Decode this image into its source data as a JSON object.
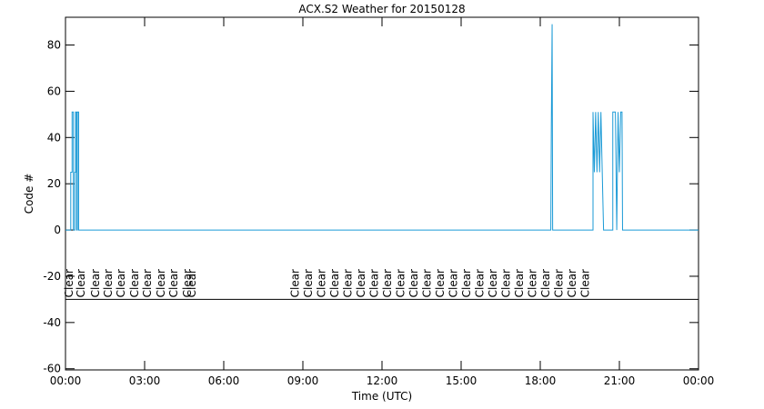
{
  "chart_data": {
    "type": "line",
    "title": "ACX.S2 Weather for 20150128",
    "xlabel": "Time (UTC)",
    "ylabel": "Code #",
    "xlim": [
      0,
      24
    ],
    "xticks": [
      {
        "value": 0,
        "label": "00:00"
      },
      {
        "value": 3,
        "label": "03:00"
      },
      {
        "value": 6,
        "label": "06:00"
      },
      {
        "value": 9,
        "label": "09:00"
      },
      {
        "value": 12,
        "label": "12:00"
      },
      {
        "value": 15,
        "label": "15:00"
      },
      {
        "value": 18,
        "label": "18:00"
      },
      {
        "value": 21,
        "label": "21:00"
      },
      {
        "value": 24,
        "label": "00:00"
      }
    ],
    "ylim": [
      -60.5,
      92
    ],
    "yticks": [
      -60,
      -40,
      -20,
      0,
      20,
      40,
      60,
      80
    ],
    "series": [
      {
        "color": "#1a9ad6",
        "x": [
          0,
          0.2,
          0.2,
          0.25,
          0.25,
          0.3,
          0.3,
          0.35,
          0.35,
          0.38,
          0.38,
          0.42,
          0.42,
          0.45,
          0.45,
          0.5,
          0.5,
          18.4,
          18.42,
          18.45,
          18.47,
          20.0,
          20.0,
          20.05,
          20.1,
          20.15,
          20.2,
          20.25,
          20.3,
          20.35,
          20.4,
          20.75,
          20.75,
          20.85,
          20.9,
          20.95,
          21.0,
          21.05,
          21.1,
          21.12,
          24
        ],
        "values": [
          0,
          0,
          25,
          25,
          51,
          51,
          0,
          0,
          25,
          25,
          51,
          51,
          0,
          0,
          51,
          51,
          0,
          0,
          45,
          89,
          0,
          0,
          51,
          25,
          51,
          25,
          51,
          25,
          51,
          25,
          0,
          0,
          51,
          51,
          0,
          51,
          25,
          51,
          51,
          0,
          0
        ]
      }
    ],
    "hline": {
      "value": -30,
      "color": "#000000"
    },
    "annotations": [
      {
        "label": "Clear",
        "x": 0.14
      },
      {
        "label": "Clear",
        "x": 0.59
      },
      {
        "label": "Clear",
        "x": 1.14
      },
      {
        "label": "Clear",
        "x": 1.62
      },
      {
        "label": "Clear",
        "x": 2.1
      },
      {
        "label": "Clear",
        "x": 2.62
      },
      {
        "label": "Clear",
        "x": 3.1
      },
      {
        "label": "Clear",
        "x": 3.62
      },
      {
        "label": "Clear",
        "x": 4.1
      },
      {
        "label": "Clear",
        "x": 4.62
      },
      {
        "label": "Clear",
        "x": 4.79
      },
      {
        "label": "Clear",
        "x": 8.7
      },
      {
        "label": "Clear",
        "x": 9.2
      },
      {
        "label": "Clear",
        "x": 9.7
      },
      {
        "label": "Clear",
        "x": 10.2
      },
      {
        "label": "Clear",
        "x": 10.7
      },
      {
        "label": "Clear",
        "x": 11.2
      },
      {
        "label": "Clear",
        "x": 11.7
      },
      {
        "label": "Clear",
        "x": 12.2
      },
      {
        "label": "Clear",
        "x": 12.7
      },
      {
        "label": "Clear",
        "x": 13.2
      },
      {
        "label": "Clear",
        "x": 13.7
      },
      {
        "label": "Clear",
        "x": 14.2
      },
      {
        "label": "Clear",
        "x": 14.7
      },
      {
        "label": "Clear",
        "x": 15.2
      },
      {
        "label": "Clear",
        "x": 15.7
      },
      {
        "label": "Clear",
        "x": 16.2
      },
      {
        "label": "Clear",
        "x": 16.7
      },
      {
        "label": "Clear",
        "x": 17.2
      },
      {
        "label": "Clear",
        "x": 17.7
      },
      {
        "label": "Clear",
        "x": 18.2
      },
      {
        "label": "Clear",
        "x": 18.7
      },
      {
        "label": "Clear",
        "x": 19.2
      },
      {
        "label": "Clear",
        "x": 19.7
      }
    ]
  }
}
